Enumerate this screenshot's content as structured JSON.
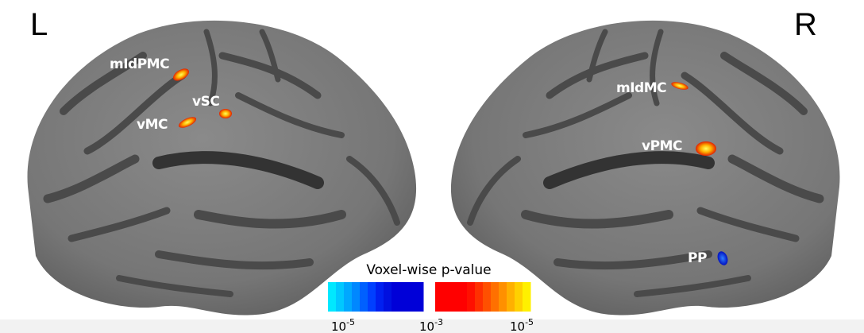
{
  "hemispheres": {
    "left": "L",
    "right": "R"
  },
  "regions": {
    "left": [
      "mIdPMC",
      "vSC",
      "vMC"
    ],
    "right": [
      "mIdMC",
      "vPMC",
      "PP"
    ]
  },
  "colorbar": {
    "title": "Voxel-wise p-value",
    "ticks": [
      {
        "base": "10",
        "exponent": "-5"
      },
      {
        "base": "10",
        "exponent": "-3"
      },
      {
        "base": "10",
        "exponent": "-5"
      }
    ]
  }
}
